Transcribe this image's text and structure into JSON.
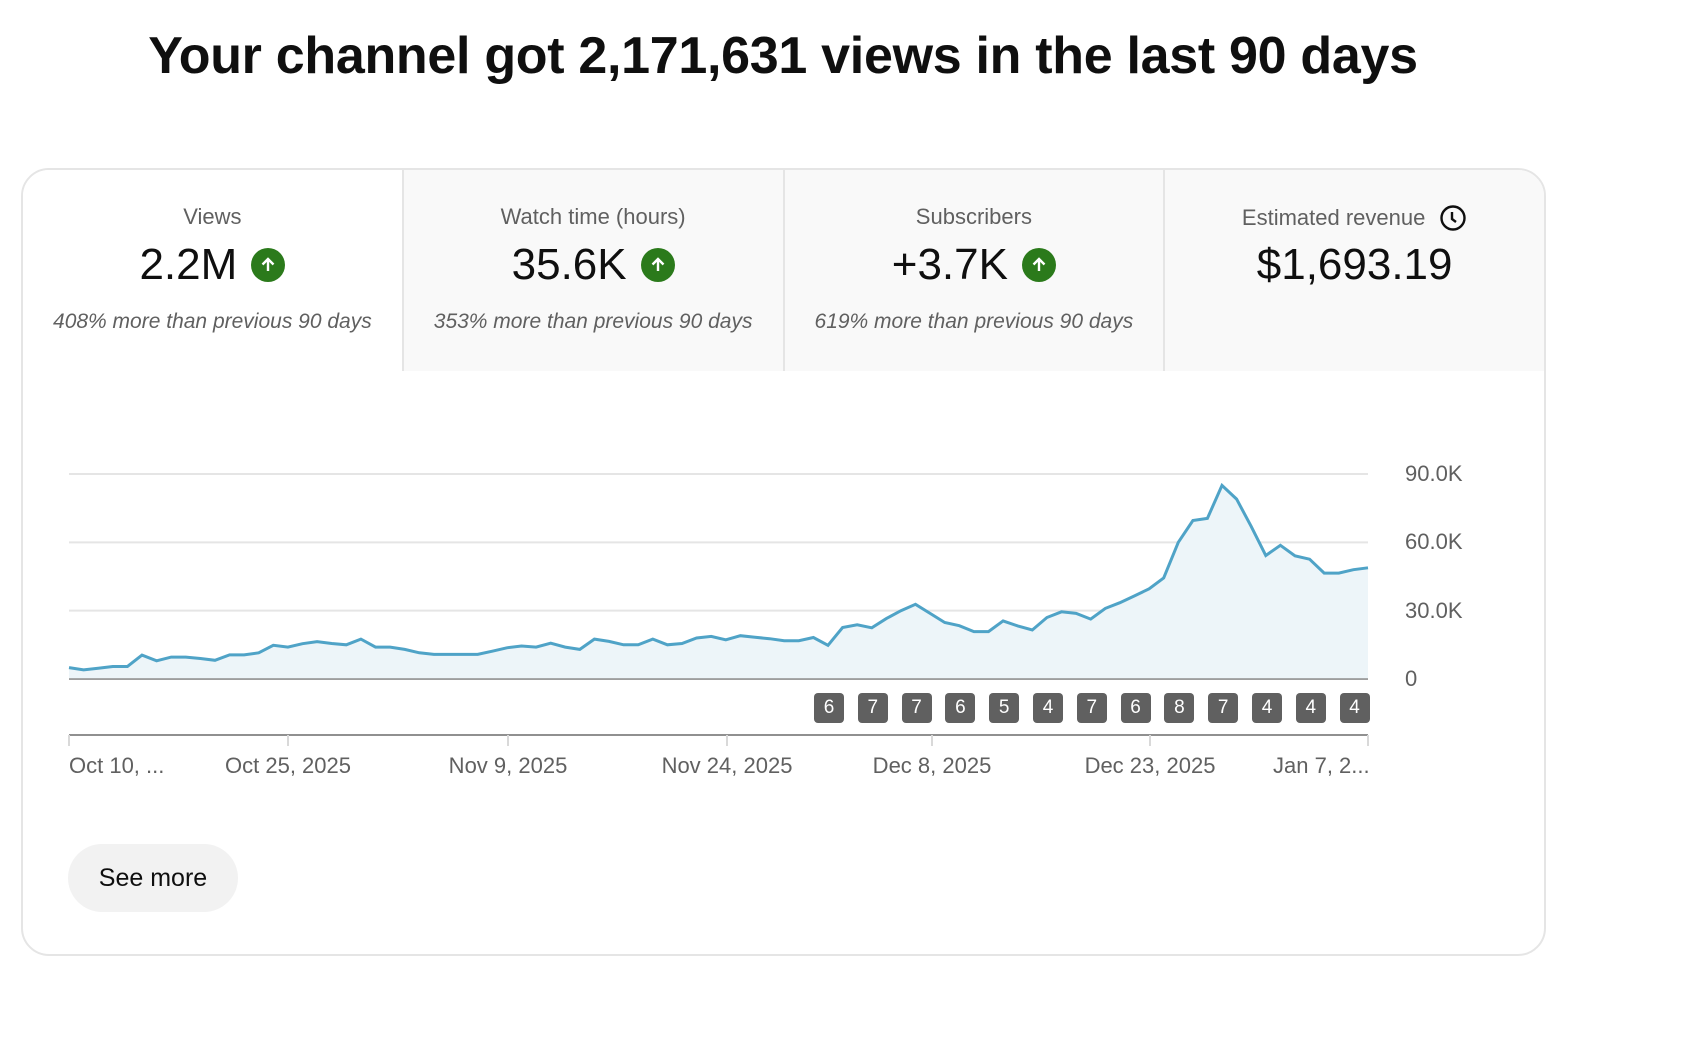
{
  "headline": "Your channel got 2,171,631 views in the last 90 days",
  "tabs": [
    {
      "label": "Views",
      "value": "2.2M",
      "trend": "up",
      "delta": "408% more than previous 90 days"
    },
    {
      "label": "Watch time (hours)",
      "value": "35.6K",
      "trend": "up",
      "delta": "353% more than previous 90 days"
    },
    {
      "label": "Subscribers",
      "value": "+3.7K",
      "trend": "up",
      "delta": "619% more than previous 90 days"
    },
    {
      "label": "Estimated revenue",
      "value": "$1,693.19",
      "icon": "clock-icon"
    }
  ],
  "colors": {
    "line": "#4fa3c7",
    "area": "#edf5f9",
    "trend_up": "#2b7a1b",
    "badge": "#606060",
    "gridline": "#e5e5e5",
    "axis": "#909090"
  },
  "chart_data": {
    "type": "area",
    "title": "Views",
    "xlabel": "",
    "ylabel": "",
    "ylim": [
      0,
      90000
    ],
    "y_ticks": [
      "0",
      "30.0K",
      "60.0K",
      "90.0K"
    ],
    "x_tick_labels": [
      "Oct 10, ...",
      "Oct 25, 2025",
      "Nov 9, 2025",
      "Nov 24, 2025",
      "Dec 8, 2025",
      "Dec 23, 2025",
      "Jan 7, 2..."
    ],
    "grid": true,
    "legend": "none",
    "series": [
      {
        "name": "Views",
        "values": [
          5000,
          4000,
          4700,
          5500,
          5500,
          10500,
          8000,
          9600,
          9600,
          9000,
          8200,
          10600,
          10600,
          11500,
          14800,
          14000,
          15500,
          16400,
          15600,
          15000,
          17500,
          14000,
          14000,
          13000,
          11500,
          10800,
          10800,
          10800,
          10800,
          12200,
          13700,
          14500,
          14000,
          15700,
          14000,
          13000,
          17500,
          16500,
          15000,
          15000,
          17500,
          15000,
          15600,
          18000,
          18700,
          17200,
          19000,
          18300,
          17700,
          16800,
          16800,
          18200,
          14800,
          22600,
          23800,
          22500,
          26500,
          30000,
          32800,
          28800,
          24800,
          23400,
          20800,
          20800,
          25500,
          23300,
          21500,
          27000,
          29500,
          28800,
          26300,
          31000,
          33500,
          36500,
          39600,
          44400,
          60000,
          69600,
          70500,
          85000,
          79000,
          67000,
          54200,
          58700,
          54100,
          52600,
          46500,
          46500,
          48000,
          48800
        ]
      }
    ]
  },
  "badges": [
    "6",
    "7",
    "7",
    "6",
    "5",
    "4",
    "7",
    "6",
    "8",
    "7",
    "4",
    "4",
    "4"
  ],
  "see_more_label": "See more"
}
